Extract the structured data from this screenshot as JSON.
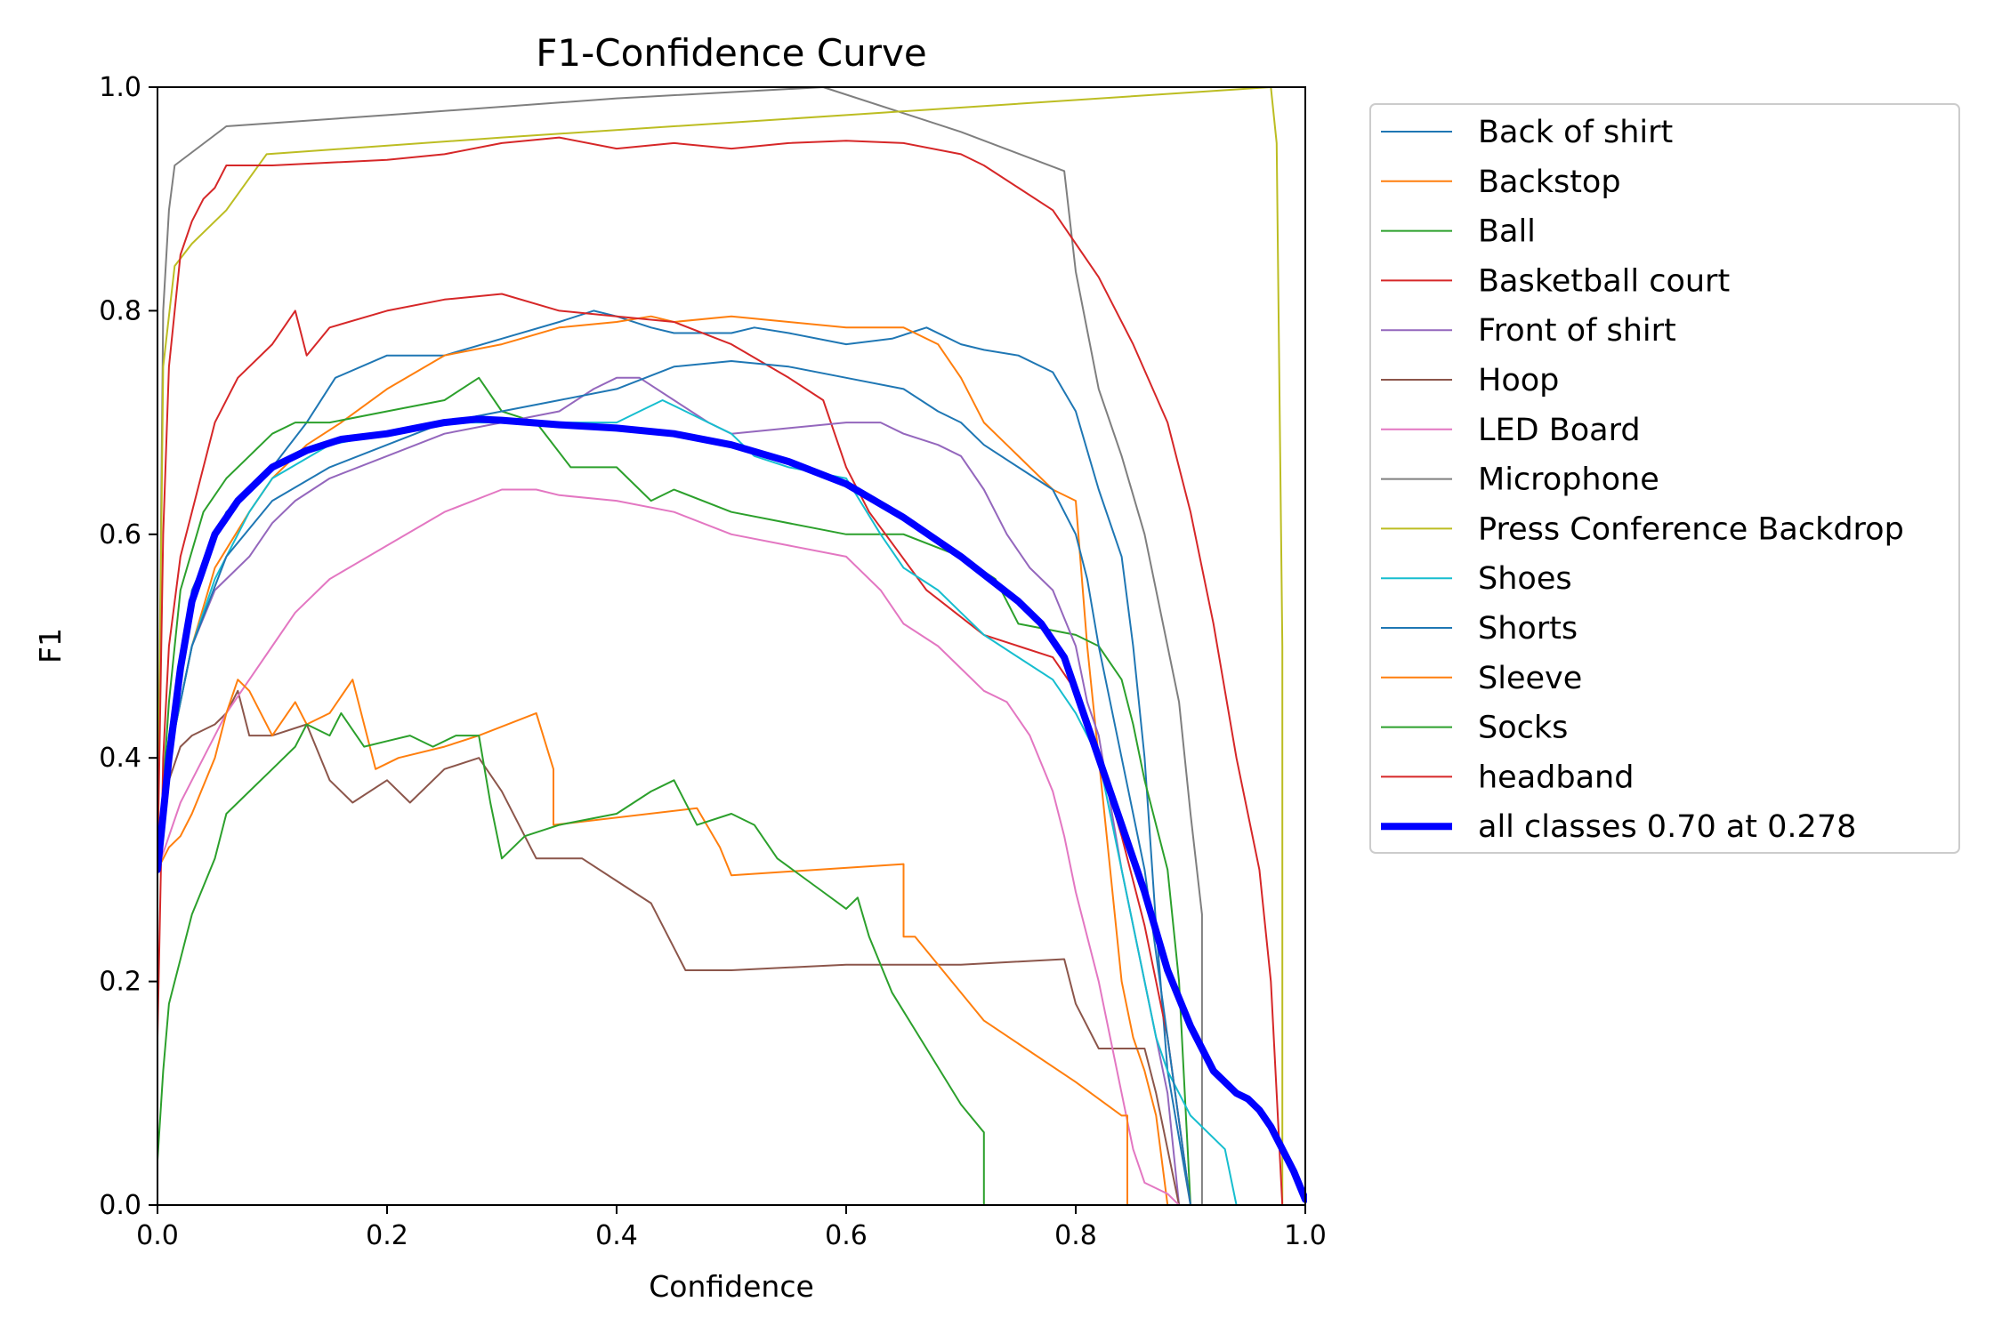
{
  "chart_data": {
    "type": "line",
    "title": "F1-Confidence Curve",
    "xlabel": "Confidence",
    "ylabel": "F1",
    "xlim": [
      0,
      1
    ],
    "ylim": [
      0,
      1
    ],
    "xticks": [
      "0.0",
      "0.2",
      "0.4",
      "0.6",
      "0.8",
      "1.0"
    ],
    "yticks": [
      "0.0",
      "0.2",
      "0.4",
      "0.6",
      "0.8",
      "1.0"
    ],
    "grid": false,
    "legend_position": "outside-right",
    "series": [
      {
        "name": "Back of shirt",
        "color": "#1f77b4",
        "width": 2,
        "x": [
          0.0,
          0.01,
          0.03,
          0.06,
          0.1,
          0.13,
          0.155,
          0.2,
          0.25,
          0.3,
          0.35,
          0.38,
          0.4,
          0.43,
          0.45,
          0.5,
          0.52,
          0.55,
          0.6,
          0.64,
          0.67,
          0.7,
          0.72,
          0.75,
          0.78,
          0.8,
          0.82,
          0.84,
          0.85,
          0.86,
          0.87,
          0.88,
          0.9
        ],
        "y": [
          0.3,
          0.42,
          0.55,
          0.62,
          0.66,
          0.7,
          0.74,
          0.76,
          0.76,
          0.775,
          0.79,
          0.8,
          0.795,
          0.785,
          0.78,
          0.78,
          0.785,
          0.78,
          0.77,
          0.775,
          0.785,
          0.77,
          0.765,
          0.76,
          0.745,
          0.71,
          0.64,
          0.58,
          0.5,
          0.4,
          0.25,
          0.12,
          0.0
        ]
      },
      {
        "name": "Backstop",
        "color": "#ff7f0e",
        "width": 2,
        "x": [
          0.0,
          0.01,
          0.03,
          0.05,
          0.08,
          0.1,
          0.13,
          0.16,
          0.2,
          0.25,
          0.3,
          0.35,
          0.4,
          0.43,
          0.45,
          0.5,
          0.55,
          0.6,
          0.65,
          0.68,
          0.7,
          0.72,
          0.74,
          0.76,
          0.78,
          0.8,
          0.81,
          0.82,
          0.83,
          0.84,
          0.85,
          0.86,
          0.87,
          0.88
        ],
        "y": [
          0.3,
          0.4,
          0.5,
          0.57,
          0.62,
          0.65,
          0.68,
          0.7,
          0.73,
          0.76,
          0.77,
          0.785,
          0.79,
          0.795,
          0.79,
          0.795,
          0.79,
          0.785,
          0.785,
          0.77,
          0.74,
          0.7,
          0.68,
          0.66,
          0.64,
          0.63,
          0.5,
          0.4,
          0.3,
          0.2,
          0.15,
          0.12,
          0.08,
          0.0
        ]
      },
      {
        "name": "Ball",
        "color": "#2ca02c",
        "width": 2,
        "x": [
          0.0,
          0.01,
          0.02,
          0.04,
          0.06,
          0.08,
          0.1,
          0.12,
          0.15,
          0.2,
          0.25,
          0.28,
          0.3,
          0.33,
          0.36,
          0.4,
          0.43,
          0.45,
          0.5,
          0.6,
          0.65,
          0.7,
          0.73,
          0.75,
          0.8,
          0.82,
          0.84,
          0.85,
          0.86,
          0.88,
          0.89,
          0.9
        ],
        "y": [
          0.3,
          0.45,
          0.55,
          0.62,
          0.65,
          0.67,
          0.69,
          0.7,
          0.7,
          0.71,
          0.72,
          0.74,
          0.71,
          0.7,
          0.66,
          0.66,
          0.63,
          0.64,
          0.62,
          0.6,
          0.6,
          0.58,
          0.56,
          0.52,
          0.51,
          0.5,
          0.47,
          0.43,
          0.38,
          0.3,
          0.2,
          0.0
        ]
      },
      {
        "name": "Basketball court",
        "color": "#d62728",
        "width": 2,
        "x": [
          0.0,
          0.005,
          0.01,
          0.02,
          0.03,
          0.04,
          0.05,
          0.07,
          0.1,
          0.12,
          0.13,
          0.15,
          0.2,
          0.25,
          0.3,
          0.35,
          0.4,
          0.45,
          0.5,
          0.55,
          0.58,
          0.6,
          0.62,
          0.67,
          0.72,
          0.75,
          0.78,
          0.8,
          0.82,
          0.84,
          0.86,
          0.88,
          0.9
        ],
        "y": [
          0.15,
          0.4,
          0.5,
          0.58,
          0.62,
          0.66,
          0.7,
          0.74,
          0.77,
          0.8,
          0.76,
          0.785,
          0.8,
          0.81,
          0.815,
          0.8,
          0.795,
          0.79,
          0.77,
          0.74,
          0.72,
          0.66,
          0.62,
          0.55,
          0.51,
          0.5,
          0.49,
          0.46,
          0.4,
          0.33,
          0.25,
          0.15,
          0.0
        ]
      },
      {
        "name": "Front of shirt",
        "color": "#9467bd",
        "width": 2,
        "x": [
          0.0,
          0.01,
          0.03,
          0.05,
          0.08,
          0.1,
          0.12,
          0.15,
          0.2,
          0.25,
          0.3,
          0.35,
          0.38,
          0.4,
          0.42,
          0.45,
          0.48,
          0.5,
          0.55,
          0.6,
          0.63,
          0.65,
          0.68,
          0.7,
          0.72,
          0.74,
          0.76,
          0.78,
          0.8,
          0.81,
          0.82,
          0.84,
          0.86,
          0.88,
          0.89
        ],
        "y": [
          0.3,
          0.4,
          0.5,
          0.55,
          0.58,
          0.61,
          0.63,
          0.65,
          0.67,
          0.69,
          0.7,
          0.71,
          0.73,
          0.74,
          0.74,
          0.72,
          0.7,
          0.69,
          0.695,
          0.7,
          0.7,
          0.69,
          0.68,
          0.67,
          0.64,
          0.6,
          0.57,
          0.55,
          0.5,
          0.45,
          0.42,
          0.3,
          0.2,
          0.1,
          0.0
        ]
      },
      {
        "name": "Hoop",
        "color": "#8c564b",
        "width": 2,
        "x": [
          0.0,
          0.01,
          0.02,
          0.03,
          0.05,
          0.06,
          0.07,
          0.08,
          0.09,
          0.1,
          0.13,
          0.15,
          0.17,
          0.2,
          0.22,
          0.25,
          0.28,
          0.3,
          0.33,
          0.37,
          0.4,
          0.43,
          0.46,
          0.5,
          0.6,
          0.7,
          0.79,
          0.8,
          0.82,
          0.86,
          0.87,
          0.88,
          0.89
        ],
        "y": [
          0.3,
          0.38,
          0.41,
          0.42,
          0.43,
          0.44,
          0.46,
          0.42,
          0.42,
          0.42,
          0.43,
          0.38,
          0.36,
          0.38,
          0.36,
          0.39,
          0.4,
          0.37,
          0.31,
          0.31,
          0.29,
          0.27,
          0.21,
          0.21,
          0.215,
          0.215,
          0.22,
          0.18,
          0.14,
          0.14,
          0.1,
          0.05,
          0.0
        ]
      },
      {
        "name": "LED Board",
        "color": "#e377c2",
        "width": 2,
        "x": [
          0.0,
          0.01,
          0.02,
          0.04,
          0.06,
          0.08,
          0.1,
          0.12,
          0.15,
          0.2,
          0.25,
          0.3,
          0.33,
          0.35,
          0.4,
          0.45,
          0.5,
          0.55,
          0.6,
          0.63,
          0.65,
          0.68,
          0.7,
          0.72,
          0.74,
          0.76,
          0.78,
          0.79,
          0.8,
          0.81,
          0.82,
          0.83,
          0.84,
          0.85,
          0.86,
          0.88,
          0.89
        ],
        "y": [
          0.3,
          0.33,
          0.36,
          0.4,
          0.44,
          0.47,
          0.5,
          0.53,
          0.56,
          0.59,
          0.62,
          0.64,
          0.64,
          0.635,
          0.63,
          0.62,
          0.6,
          0.59,
          0.58,
          0.55,
          0.52,
          0.5,
          0.48,
          0.46,
          0.45,
          0.42,
          0.37,
          0.33,
          0.28,
          0.24,
          0.2,
          0.15,
          0.1,
          0.05,
          0.02,
          0.01,
          0.0
        ]
      },
      {
        "name": "Microphone",
        "color": "#7f7f7f",
        "width": 2,
        "x": [
          0.0,
          0.005,
          0.01,
          0.015,
          0.06,
          0.2,
          0.4,
          0.58,
          0.7,
          0.79,
          0.8,
          0.82,
          0.84,
          0.86,
          0.89,
          0.9,
          0.91,
          0.91
        ],
        "y": [
          0.3,
          0.8,
          0.89,
          0.93,
          0.965,
          0.975,
          0.99,
          1.0,
          0.96,
          0.925,
          0.835,
          0.73,
          0.67,
          0.6,
          0.45,
          0.35,
          0.26,
          0.0
        ]
      },
      {
        "name": "Press Conference Backdrop",
        "color": "#bcbd22",
        "width": 2,
        "x": [
          0.0,
          0.005,
          0.015,
          0.03,
          0.06,
          0.095,
          0.3,
          0.6,
          0.97,
          0.975,
          0.98,
          0.98
        ],
        "y": [
          0.3,
          0.75,
          0.84,
          0.86,
          0.89,
          0.94,
          0.955,
          0.975,
          1.0,
          0.95,
          0.5,
          0.0
        ]
      },
      {
        "name": "Shoes",
        "color": "#17becf",
        "width": 2,
        "x": [
          0.0,
          0.01,
          0.03,
          0.05,
          0.08,
          0.1,
          0.15,
          0.2,
          0.25,
          0.3,
          0.35,
          0.4,
          0.42,
          0.44,
          0.46,
          0.48,
          0.5,
          0.52,
          0.55,
          0.6,
          0.63,
          0.65,
          0.68,
          0.7,
          0.72,
          0.75,
          0.78,
          0.8,
          0.82,
          0.83,
          0.84,
          0.85,
          0.86,
          0.87,
          0.88,
          0.9,
          0.93,
          0.94
        ],
        "y": [
          0.3,
          0.4,
          0.5,
          0.56,
          0.62,
          0.65,
          0.68,
          0.69,
          0.7,
          0.7,
          0.7,
          0.7,
          0.71,
          0.72,
          0.71,
          0.7,
          0.69,
          0.67,
          0.66,
          0.65,
          0.6,
          0.57,
          0.55,
          0.53,
          0.51,
          0.49,
          0.47,
          0.44,
          0.4,
          0.35,
          0.3,
          0.25,
          0.2,
          0.15,
          0.12,
          0.08,
          0.05,
          0.0
        ]
      },
      {
        "name": "Shorts",
        "color": "#1f77b4",
        "width": 2,
        "x": [
          0.0,
          0.01,
          0.03,
          0.06,
          0.1,
          0.15,
          0.2,
          0.25,
          0.3,
          0.35,
          0.4,
          0.45,
          0.5,
          0.55,
          0.6,
          0.65,
          0.68,
          0.7,
          0.72,
          0.75,
          0.78,
          0.8,
          0.81,
          0.82,
          0.84,
          0.86,
          0.88,
          0.9
        ],
        "y": [
          0.3,
          0.4,
          0.5,
          0.58,
          0.63,
          0.66,
          0.68,
          0.7,
          0.71,
          0.72,
          0.73,
          0.75,
          0.755,
          0.75,
          0.74,
          0.73,
          0.71,
          0.7,
          0.68,
          0.66,
          0.64,
          0.6,
          0.56,
          0.5,
          0.4,
          0.3,
          0.15,
          0.0
        ]
      },
      {
        "name": "Sleeve",
        "color": "#ff7f0e",
        "width": 2,
        "x": [
          0.0,
          0.01,
          0.02,
          0.03,
          0.05,
          0.06,
          0.07,
          0.08,
          0.09,
          0.1,
          0.12,
          0.13,
          0.15,
          0.17,
          0.19,
          0.21,
          0.25,
          0.28,
          0.33,
          0.345,
          0.345,
          0.47,
          0.49,
          0.5,
          0.65,
          0.65,
          0.66,
          0.72,
          0.8,
          0.84,
          0.845,
          0.845
        ],
        "y": [
          0.3,
          0.32,
          0.33,
          0.35,
          0.4,
          0.44,
          0.47,
          0.46,
          0.44,
          0.42,
          0.45,
          0.43,
          0.44,
          0.47,
          0.39,
          0.4,
          0.41,
          0.42,
          0.44,
          0.39,
          0.34,
          0.355,
          0.32,
          0.295,
          0.305,
          0.24,
          0.24,
          0.165,
          0.11,
          0.08,
          0.08,
          0.0
        ]
      },
      {
        "name": "Socks",
        "color": "#2ca02c",
        "width": 2,
        "x": [
          0.0,
          0.005,
          0.01,
          0.02,
          0.03,
          0.05,
          0.06,
          0.08,
          0.1,
          0.12,
          0.13,
          0.15,
          0.16,
          0.18,
          0.2,
          0.22,
          0.24,
          0.26,
          0.28,
          0.29,
          0.3,
          0.32,
          0.35,
          0.4,
          0.43,
          0.45,
          0.47,
          0.5,
          0.52,
          0.54,
          0.58,
          0.6,
          0.61,
          0.62,
          0.64,
          0.67,
          0.7,
          0.72,
          0.72
        ],
        "y": [
          0.04,
          0.12,
          0.18,
          0.22,
          0.26,
          0.31,
          0.35,
          0.37,
          0.39,
          0.41,
          0.43,
          0.42,
          0.44,
          0.41,
          0.415,
          0.42,
          0.41,
          0.42,
          0.42,
          0.36,
          0.31,
          0.33,
          0.34,
          0.35,
          0.37,
          0.38,
          0.34,
          0.35,
          0.34,
          0.31,
          0.28,
          0.265,
          0.275,
          0.24,
          0.19,
          0.14,
          0.09,
          0.065,
          0.0
        ]
      },
      {
        "name": "headband",
        "color": "#d62728",
        "width": 2,
        "x": [
          0.0,
          0.005,
          0.01,
          0.02,
          0.03,
          0.04,
          0.05,
          0.06,
          0.1,
          0.2,
          0.25,
          0.3,
          0.35,
          0.4,
          0.45,
          0.5,
          0.55,
          0.6,
          0.65,
          0.7,
          0.72,
          0.75,
          0.78,
          0.8,
          0.82,
          0.85,
          0.88,
          0.9,
          0.92,
          0.94,
          0.96,
          0.97,
          0.975,
          0.98
        ],
        "y": [
          0.3,
          0.6,
          0.75,
          0.85,
          0.88,
          0.9,
          0.91,
          0.93,
          0.93,
          0.935,
          0.94,
          0.95,
          0.955,
          0.945,
          0.95,
          0.945,
          0.95,
          0.952,
          0.95,
          0.94,
          0.93,
          0.91,
          0.89,
          0.86,
          0.83,
          0.77,
          0.7,
          0.62,
          0.52,
          0.4,
          0.3,
          0.2,
          0.1,
          0.0
        ]
      },
      {
        "name": "all classes 0.70 at 0.278",
        "color": "#0000ff",
        "width": 8,
        "x": [
          0.0,
          0.01,
          0.02,
          0.03,
          0.05,
          0.07,
          0.1,
          0.13,
          0.16,
          0.2,
          0.25,
          0.278,
          0.3,
          0.35,
          0.4,
          0.45,
          0.5,
          0.55,
          0.6,
          0.65,
          0.7,
          0.75,
          0.77,
          0.79,
          0.8,
          0.82,
          0.84,
          0.86,
          0.88,
          0.9,
          0.91,
          0.92,
          0.93,
          0.94,
          0.95,
          0.96,
          0.97,
          0.98,
          0.99,
          1.0
        ],
        "y": [
          0.3,
          0.4,
          0.48,
          0.54,
          0.6,
          0.63,
          0.66,
          0.675,
          0.685,
          0.69,
          0.7,
          0.703,
          0.702,
          0.698,
          0.695,
          0.69,
          0.68,
          0.665,
          0.645,
          0.615,
          0.58,
          0.54,
          0.52,
          0.49,
          0.46,
          0.4,
          0.34,
          0.28,
          0.21,
          0.16,
          0.14,
          0.12,
          0.11,
          0.1,
          0.095,
          0.085,
          0.07,
          0.05,
          0.03,
          0.005
        ]
      }
    ]
  }
}
